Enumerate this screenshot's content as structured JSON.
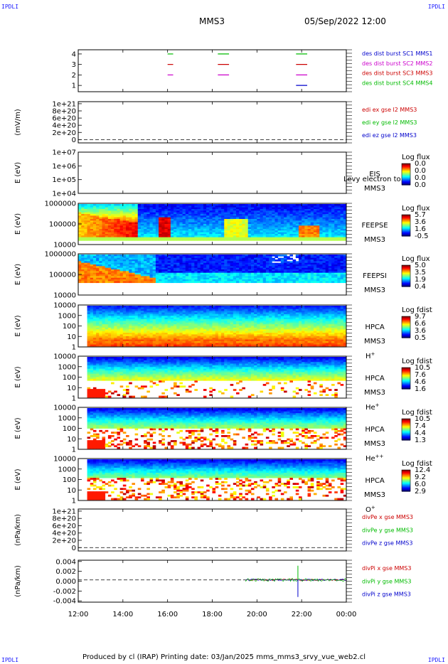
{
  "header": {
    "corner_label": "IPDLI",
    "spacecraft": "MMS3",
    "datetime": "05/Sep/2022 12:00"
  },
  "footer": {
    "text": "Produced by cl (IRAP)   Printing date: 03/Jan/2025   mms_mms3_srvy_vue_web2.cl"
  },
  "colors": {
    "blue": "#0000cc",
    "magenta": "#cc00cc",
    "red": "#cc0000",
    "green": "#00bb00"
  },
  "chart_data": {
    "type": "heatmap",
    "x_ticks": [
      "12:00",
      "14:00",
      "16:00",
      "18:00",
      "20:00",
      "22:00",
      "00:00"
    ],
    "x_range": [
      "12:00",
      "00:00"
    ],
    "panels": [
      {
        "id": "burst",
        "type": "scatter",
        "yticks": [
          "4",
          "3",
          "2",
          "1"
        ],
        "legend": [
          {
            "text": "des dist burst SC1 MMS1",
            "color": "#0000cc"
          },
          {
            "text": "des dist burst SC2 MMS2",
            "color": "#cc00cc"
          },
          {
            "text": "des dist burst SC3 MMS3",
            "color": "#cc0000"
          },
          {
            "text": "des dist burst SC4 MMS4",
            "color": "#00bb00"
          }
        ],
        "segments": [
          {
            "level": 4,
            "start": "16:00",
            "end": "16:15",
            "color": "#00bb00"
          },
          {
            "level": 4,
            "start": "18:15",
            "end": "18:45",
            "color": "#00bb00"
          },
          {
            "level": 4,
            "start": "21:45",
            "end": "22:15",
            "color": "#00bb00"
          },
          {
            "level": 3,
            "start": "16:00",
            "end": "16:15",
            "color": "#cc0000"
          },
          {
            "level": 3,
            "start": "18:15",
            "end": "18:45",
            "color": "#cc0000"
          },
          {
            "level": 3,
            "start": "21:45",
            "end": "22:15",
            "color": "#cc0000"
          },
          {
            "level": 2,
            "start": "16:00",
            "end": "16:15",
            "color": "#cc00cc"
          },
          {
            "level": 2,
            "start": "18:15",
            "end": "18:45",
            "color": "#cc00cc"
          },
          {
            "level": 2,
            "start": "21:45",
            "end": "22:15",
            "color": "#cc00cc"
          },
          {
            "level": 1,
            "start": "21:45",
            "end": "22:15",
            "color": "#0000cc"
          }
        ]
      },
      {
        "id": "edi",
        "type": "line",
        "ylabel": "(mV/m)",
        "yticks": [
          "1e+21",
          "8e+20",
          "6e+20",
          "4e+20",
          "2e+20",
          "0"
        ],
        "legend": [
          {
            "text": "edi ex gse l2 MMS3",
            "color": "#cc0000"
          },
          {
            "text": "edi ey gse l2 MMS3",
            "color": "#00bb00"
          },
          {
            "text": "edi ez gse l2 MMS3",
            "color": "#0000cc"
          }
        ]
      },
      {
        "id": "eis",
        "type": "heatmap",
        "ylabel": "E (eV)",
        "yticks": [
          "1e+07",
          "1e+06",
          "1e+05",
          "1e+04"
        ],
        "instrument": [
          "EIS",
          "MMS3"
        ],
        "overlap_text": "Levy electron to",
        "cbar_title": "Log flux",
        "cbar_ticks": [
          "0.0",
          "0.0",
          "0.0",
          "0.0"
        ]
      },
      {
        "id": "feepse",
        "type": "heatmap",
        "ylabel": "E (eV)",
        "yticks": [
          "1000000",
          "100000",
          "10000"
        ],
        "instrument": [
          "FEEPSE",
          "MMS3"
        ],
        "cbar_title": "Log flux",
        "cbar_ticks": [
          "5.7",
          "3.6",
          "1.6",
          "-0.5"
        ]
      },
      {
        "id": "feepsi",
        "type": "heatmap",
        "ylabel": "E (eV)",
        "yticks": [
          "1000000",
          "100000",
          "10000"
        ],
        "instrument": [
          "FEEPSI",
          "MMS3"
        ],
        "cbar_title": "Log flux",
        "cbar_ticks": [
          "5.0",
          "3.5",
          "1.9",
          "0.4"
        ]
      },
      {
        "id": "hpca_h",
        "type": "heatmap",
        "ylabel": "E (eV)",
        "yticks": [
          "10000",
          "1000",
          "100",
          "10",
          "1"
        ],
        "instrument": [
          "HPCA",
          "MMS3"
        ],
        "species": "H",
        "species_sup": "+",
        "cbar_title": "Log fdist",
        "cbar_ticks": [
          "9.7",
          "6.6",
          "3.6",
          "0.5"
        ]
      },
      {
        "id": "hpca_he1",
        "type": "heatmap",
        "ylabel": "E (eV)",
        "yticks": [
          "10000",
          "1000",
          "100",
          "10",
          "1"
        ],
        "instrument": [
          "HPCA",
          "MMS3"
        ],
        "species": "He",
        "species_sup": "+",
        "cbar_title": "Log fdist",
        "cbar_ticks": [
          "10.5",
          "7.6",
          "4.6",
          "1.6"
        ]
      },
      {
        "id": "hpca_he2",
        "type": "heatmap",
        "ylabel": "E (eV)",
        "yticks": [
          "10000",
          "1000",
          "100",
          "10",
          "1"
        ],
        "instrument": [
          "HPCA",
          "MMS3"
        ],
        "species": "He",
        "species_sup": "++",
        "cbar_title": "Log fdist",
        "cbar_ticks": [
          "10.5",
          "7.4",
          "4.4",
          "1.3"
        ]
      },
      {
        "id": "hpca_o",
        "type": "heatmap",
        "ylabel": "E (eV)",
        "yticks": [
          "10000",
          "1000",
          "100",
          "10",
          "1"
        ],
        "instrument": [
          "HPCA",
          "MMS3"
        ],
        "species": "O",
        "species_sup": "+",
        "cbar_title": "Log fdist",
        "cbar_ticks": [
          "12.4",
          "9.2",
          "6.0",
          "2.9"
        ]
      },
      {
        "id": "divpe",
        "type": "line",
        "ylabel": "(nPa/km)",
        "yticks": [
          "1e+21",
          "8e+20",
          "6e+20",
          "4e+20",
          "2e+20",
          "0"
        ],
        "legend": [
          {
            "text": "divPe x gse MMS3",
            "color": "#cc0000"
          },
          {
            "text": "divPe y gse MMS3",
            "color": "#00bb00"
          },
          {
            "text": "divPe z gse MMS3",
            "color": "#0000cc"
          }
        ]
      },
      {
        "id": "divpi",
        "type": "line",
        "ylabel": "(nPa/km)",
        "yticks": [
          "0.004",
          "0.002",
          "0.000",
          "-0.002",
          "-0.004"
        ],
        "ylim": [
          -0.005,
          0.004
        ],
        "data_start": "19:30",
        "data_end": "00:00",
        "spike_time": "21:50",
        "legend": [
          {
            "text": "divPi x gse MMS3",
            "color": "#cc0000"
          },
          {
            "text": "divPi y gse MMS3",
            "color": "#00bb00"
          },
          {
            "text": "divPi z gse MMS3",
            "color": "#0000cc"
          }
        ]
      }
    ]
  }
}
